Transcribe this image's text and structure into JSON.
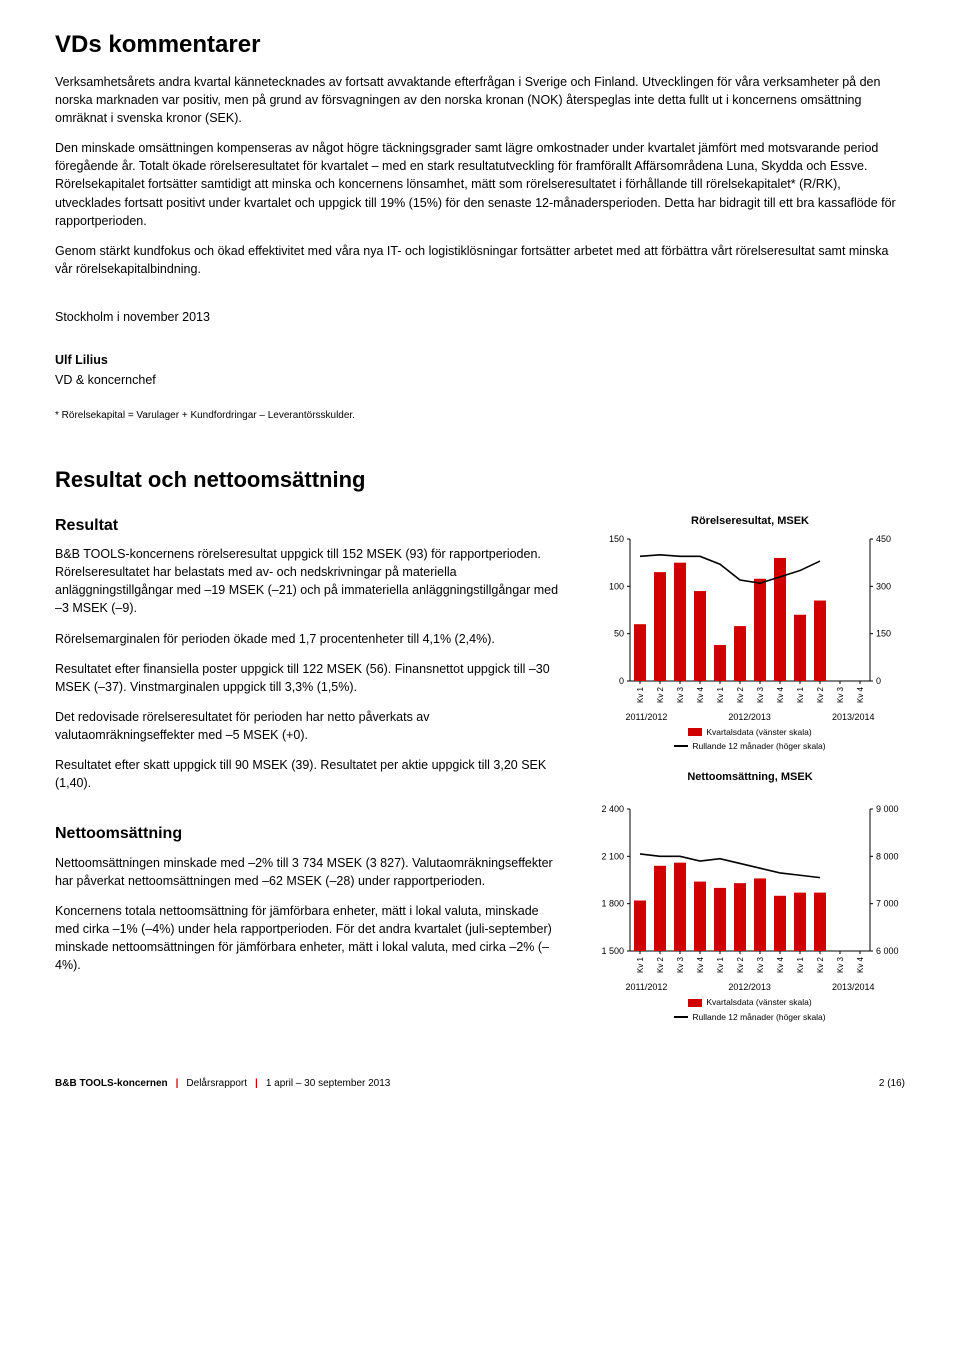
{
  "title": "VDs kommentarer",
  "para1": "Verksamhetsårets andra kvartal kännetecknades av fortsatt avvaktande efterfrågan i Sverige och Finland. Utvecklingen för våra verksamheter på den norska marknaden var positiv, men på grund av försvagningen av den norska kronan (NOK) återspeglas inte detta fullt ut i koncernens omsättning omräknat i svenska kronor (SEK).",
  "para2": "Den minskade omsättningen kompenseras av något högre täckningsgrader samt lägre omkostnader under kvartalet jämfört med motsvarande period föregående år. Totalt ökade rörelseresultatet för kvartalet – med en stark resultatutveckling för framförallt Affärsområdena Luna, Skydda och Essve. Rörelsekapitalet fortsätter samtidigt att minska och koncernens lönsamhet, mätt som rörelseresultatet i förhållande till rörelsekapitalet* (R/RK), utvecklades fortsatt positivt under kvartalet och uppgick till 19% (15%) för den senaste 12-månadersperioden. Detta har bidragit till ett bra kassaflöde för rapportperioden.",
  "para3": "Genom stärkt kundfokus och ökad effektivitet med våra nya IT- och logistiklösningar fortsätter arbetet med att förbättra vårt rörelseresultat samt minska vår rörelsekapitalbindning.",
  "dateline": "Stockholm i november 2013",
  "signer_name": "Ulf Lilius",
  "signer_title": "VD & koncernchef",
  "footnote": "* Rörelsekapital = Varulager + Kundfordringar – Leverantörsskulder.",
  "section2_title": "Resultat och nettoomsättning",
  "resultat_heading": "Resultat",
  "resultat_p1": "B&B TOOLS-koncernens rörelseresultat uppgick till 152 MSEK (93) för rapportperioden. Rörelseresultatet har belastats med av- och nedskrivningar på materiella anläggningstillgångar med –19 MSEK (–21) och på immateriella anläggningstillgångar med –3 MSEK (–9).",
  "resultat_p2": "Rörelsemarginalen för perioden ökade med 1,7 procentenheter till 4,1% (2,4%).",
  "resultat_p3": "Resultatet efter finansiella poster uppgick till 122 MSEK (56). Finansnettot uppgick till –30 MSEK (–37). Vinstmarginalen uppgick till 3,3% (1,5%).",
  "resultat_p4": "Det redovisade rörelseresultatet för perioden har netto påverkats av valutaomräkningseffekter med –5 MSEK (+0).",
  "resultat_p5": "Resultatet efter skatt uppgick till 90 MSEK (39). Resultatet per aktie uppgick till 3,20 SEK (1,40).",
  "netto_heading": "Nettoomsättning",
  "netto_p1": "Nettoomsättningen minskade med –2% till 3 734 MSEK (3 827). Valutaomräkningseffekter har påverkat nettoomsättningen med –62 MSEK (–28) under rapportperioden.",
  "netto_p2": "Koncernens totala nettoomsättning för jämförbara enheter, mätt i lokal valuta, minskade med cirka –1% (–4%) under hela rapportperioden. För det andra kvartalet (juli-september) minskade nettoomsättningen för jämförbara enheter, mätt i lokal valuta, med cirka –2% (–4%).",
  "chart1": {
    "title": "Rörelseresultat, MSEK",
    "type": "bar+line",
    "categories": [
      "Kv 1",
      "Kv 2",
      "Kv 3",
      "Kv 4",
      "Kv 1",
      "Kv 2",
      "Kv 3",
      "Kv 4",
      "Kv 1",
      "Kv 2",
      "Kv 3",
      "Kv 4"
    ],
    "bar_values": [
      60,
      115,
      125,
      95,
      38,
      58,
      108,
      130,
      70,
      85,
      null,
      null
    ],
    "bar_color": "#d00000",
    "line_values": [
      395,
      400,
      395,
      395,
      370,
      320,
      310,
      330,
      350,
      380,
      null,
      null
    ],
    "line_color": "#000000",
    "yleft_ticks": [
      0,
      50,
      100,
      150
    ],
    "yright_ticks": [
      0,
      150,
      300,
      450
    ],
    "yleft_lim": [
      0,
      150
    ],
    "yright_lim": [
      0,
      450
    ],
    "year_groups": [
      "2011/2012",
      "2012/2013",
      "2013/2014"
    ],
    "legend_bar": "Kvartalsdata (vänster skala)",
    "legend_line": "Rullande 12 månader (höger skala)",
    "background": "#ffffff",
    "bar_width": 0.6
  },
  "chart2": {
    "title": "Nettoomsättning, MSEK",
    "type": "bar+line",
    "categories": [
      "Kv 1",
      "Kv 2",
      "Kv 3",
      "Kv 4",
      "Kv 1",
      "Kv 2",
      "Kv 3",
      "Kv 4",
      "Kv 1",
      "Kv 2",
      "Kv 3",
      "Kv 4"
    ],
    "bar_values": [
      1820,
      2040,
      2060,
      1940,
      1900,
      1930,
      1960,
      1850,
      1870,
      1870,
      null,
      null
    ],
    "bar_color": "#d00000",
    "line_values": [
      8050,
      8000,
      8000,
      7900,
      7950,
      7850,
      7750,
      7650,
      7600,
      7550,
      null,
      null
    ],
    "line_color": "#000000",
    "yleft_ticks": [
      1500,
      1800,
      2100,
      2400
    ],
    "yright_ticks": [
      6000,
      7000,
      8000,
      9000
    ],
    "yleft_lim": [
      1500,
      2400
    ],
    "yright_lim": [
      6000,
      9000
    ],
    "year_groups": [
      "2011/2012",
      "2012/2013",
      "2013/2014"
    ],
    "legend_bar": "Kvartalsdata (vänster skala)",
    "legend_line": "Rullande 12 månader (höger skala)",
    "background": "#ffffff",
    "bar_width": 0.6
  },
  "footer_company": "B&B TOOLS-koncernen",
  "footer_report": "Delårsrapport",
  "footer_period": "1 april – 30 september 2013",
  "footer_page": "2 (16)"
}
